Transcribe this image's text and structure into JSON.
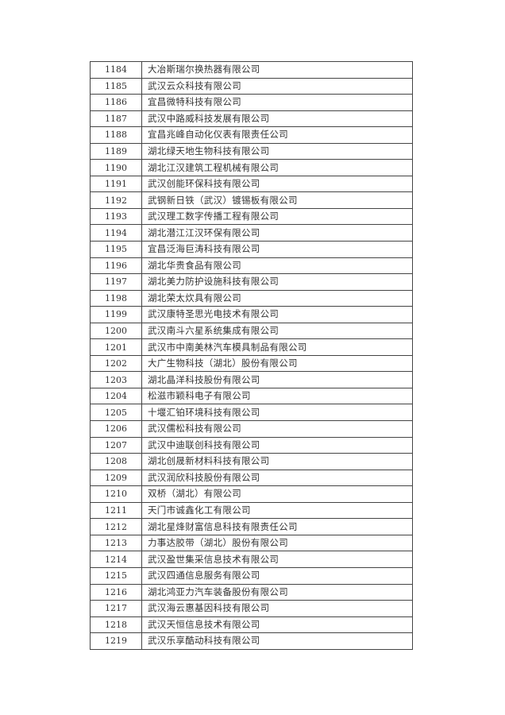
{
  "rows": [
    {
      "no": "1184",
      "name": "大冶斯瑞尔换热器有限公司"
    },
    {
      "no": "1185",
      "name": "武汉云众科技有限公司"
    },
    {
      "no": "1186",
      "name": "宜昌微特科技有限公司"
    },
    {
      "no": "1187",
      "name": "武汉中路威科技发展有限公司"
    },
    {
      "no": "1188",
      "name": "宜昌兆峰自动化仪表有限责任公司"
    },
    {
      "no": "1189",
      "name": "湖北绿天地生物科技有限公司"
    },
    {
      "no": "1190",
      "name": "湖北江汉建筑工程机械有限公司"
    },
    {
      "no": "1191",
      "name": "武汉创能环保科技有限公司"
    },
    {
      "no": "1192",
      "name": "武钢新日铁（武汉）镀锡板有限公司"
    },
    {
      "no": "1193",
      "name": "武汉理工数字传播工程有限公司"
    },
    {
      "no": "1194",
      "name": "湖北潜江江汉环保有限公司"
    },
    {
      "no": "1195",
      "name": "宜昌泛海巨涛科技有限公司"
    },
    {
      "no": "1196",
      "name": "湖北华贵食品有限公司"
    },
    {
      "no": "1197",
      "name": "湖北美力防护设施科技有限公司"
    },
    {
      "no": "1198",
      "name": "湖北荣太炊具有限公司"
    },
    {
      "no": "1199",
      "name": "武汉康特圣思光电技术有限公司"
    },
    {
      "no": "1200",
      "name": "武汉南斗六星系统集成有限公司"
    },
    {
      "no": "1201",
      "name": "武汉市中南美林汽车模具制品有限公司"
    },
    {
      "no": "1202",
      "name": "大广生物科技（湖北）股份有限公司"
    },
    {
      "no": "1203",
      "name": "湖北晶洋科技股份有限公司"
    },
    {
      "no": "1204",
      "name": "松滋市颖科电子有限公司"
    },
    {
      "no": "1205",
      "name": "十堰汇铂环境科技有限公司"
    },
    {
      "no": "1206",
      "name": "武汉儒松科技有限公司"
    },
    {
      "no": "1207",
      "name": "武汉中迪联创科技有限公司"
    },
    {
      "no": "1208",
      "name": "湖北创晟新材料科技有限公司"
    },
    {
      "no": "1209",
      "name": "武汉润欣科技股份有限公司"
    },
    {
      "no": "1210",
      "name": "双桥（湖北）有限公司"
    },
    {
      "no": "1211",
      "name": "天门市诚鑫化工有限公司"
    },
    {
      "no": "1212",
      "name": "湖北星烽财富信息科技有限责任公司"
    },
    {
      "no": "1213",
      "name": "力事达胶带（湖北）股份有限公司"
    },
    {
      "no": "1214",
      "name": "武汉盈世集采信息技术有限公司"
    },
    {
      "no": "1215",
      "name": "武汉四通信息服务有限公司"
    },
    {
      "no": "1216",
      "name": "湖北鸿亚力汽车装备股份有限公司"
    },
    {
      "no": "1217",
      "name": "武汉海云惠基因科技有限公司"
    },
    {
      "no": "1218",
      "name": "武汉天恒信息技术有限公司"
    },
    {
      "no": "1219",
      "name": "武汉乐享酷动科技有限公司"
    }
  ]
}
